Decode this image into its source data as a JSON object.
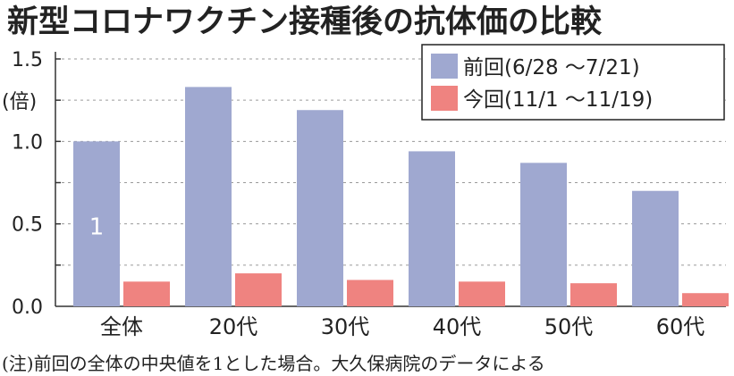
{
  "chart_data": {
    "type": "bar",
    "title": "新型コロナワクチン接種後の抗体価の比較",
    "ylabel": "(倍)",
    "xlabel": "",
    "categories": [
      "全体",
      "20代",
      "30代",
      "40代",
      "50代",
      "60代"
    ],
    "series": [
      {
        "name": "前回(6/28 ～7/21)",
        "color": "#9fa8d0",
        "values": [
          1.0,
          1.33,
          1.19,
          0.94,
          0.87,
          0.7
        ]
      },
      {
        "name": "今回(11/1 ～11/19)",
        "color": "#ef8380",
        "values": [
          0.15,
          0.2,
          0.16,
          0.15,
          0.14,
          0.08
        ]
      }
    ],
    "ylim": [
      0,
      1.5
    ],
    "yticks": [
      "0.0",
      "0.5",
      "1.0",
      "1.5"
    ],
    "grid": "dashed horizontal at 0.25 intervals",
    "legend_position": "top-right",
    "bar_annotation": {
      "category": "全体",
      "text": "1"
    },
    "note": "(注)前回の全体の中央値を1とした場合。大久保病院のデータによる"
  }
}
